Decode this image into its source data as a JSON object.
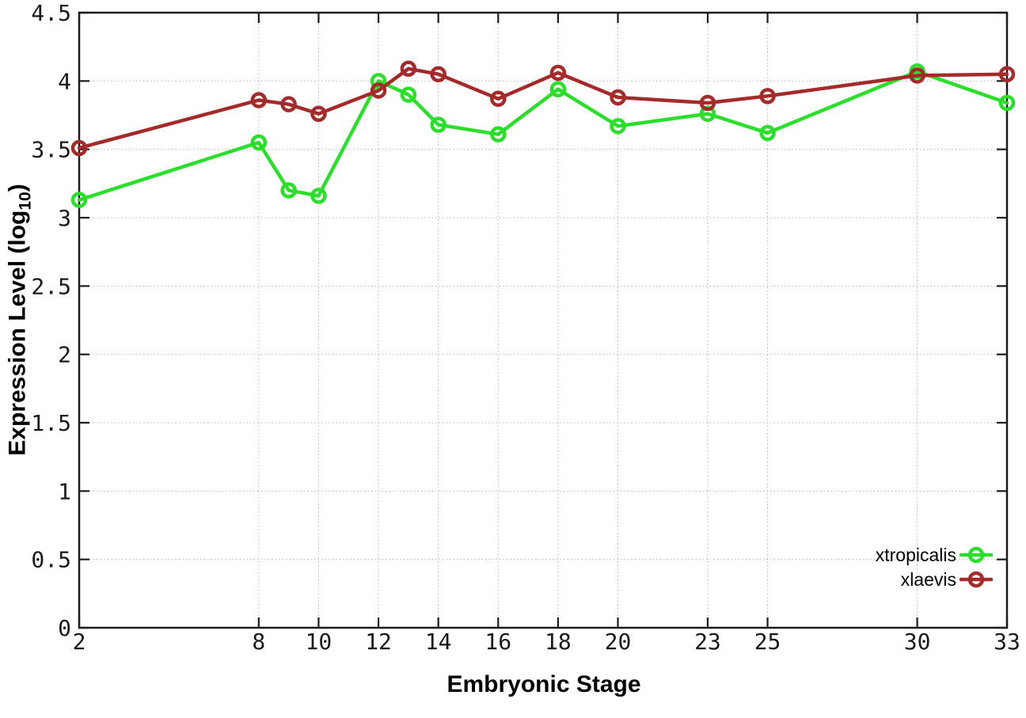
{
  "labels": {
    "xlabel": "Embryonic Stage",
    "ylabel_prefix": "Expression Level (log",
    "ylabel_sub": "10",
    "ylabel_suffix": ")"
  },
  "style": {
    "background": "#ffffff",
    "border_color": "#1c1c1c",
    "grid_color": "#b4b4b4",
    "tick_label_color": "#1a1a1a",
    "legend_text_color": "#000000"
  },
  "chart_data": {
    "type": "line",
    "title": "",
    "xlabel": "Embryonic Stage",
    "ylabel": "Expression Level (log10)",
    "xlim": [
      2,
      33
    ],
    "ylim": [
      0,
      4.5
    ],
    "x_ticks": [
      2,
      8,
      10,
      12,
      14,
      16,
      18,
      20,
      23,
      25,
      30,
      33
    ],
    "y_ticks": [
      0,
      0.5,
      1,
      1.5,
      2,
      2.5,
      3,
      3.5,
      4,
      4.5
    ],
    "grid": true,
    "legend_position": "bottom-right",
    "x": [
      2,
      8,
      9,
      10,
      12,
      13,
      14,
      16,
      18,
      20,
      23,
      25,
      30,
      33
    ],
    "series": [
      {
        "name": "xtropicalis",
        "color": "#2adf2a",
        "values": [
          3.13,
          3.55,
          3.2,
          3.16,
          4.0,
          3.9,
          3.68,
          3.61,
          3.94,
          3.67,
          3.76,
          3.62,
          4.07,
          3.84
        ]
      },
      {
        "name": "xlaevis",
        "color": "#a52b2b",
        "values": [
          3.51,
          3.86,
          3.83,
          3.76,
          3.93,
          4.09,
          4.05,
          3.87,
          4.06,
          3.88,
          3.84,
          3.89,
          4.04,
          4.05
        ]
      }
    ]
  }
}
